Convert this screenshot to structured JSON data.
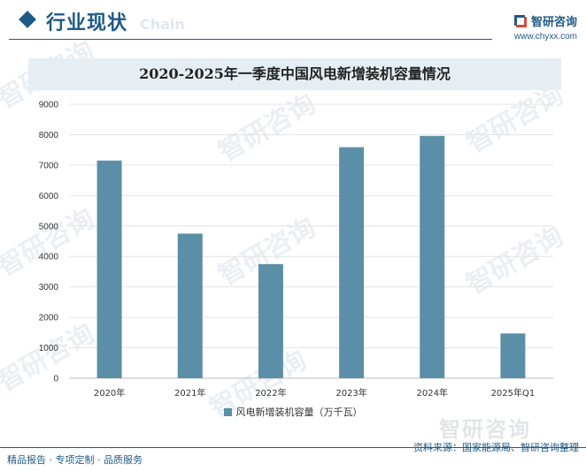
{
  "header": {
    "title": "行业现状",
    "ghost_text": "Chain",
    "brand_name": "智研咨询",
    "brand_url": "www.chyxx.com"
  },
  "watermark_text": "智研咨询",
  "footer": {
    "left": "精品报告 · 专项定制 · 品质服务",
    "right": "资料来源：国家能源局、智研咨询整理"
  },
  "colors": {
    "bar": "#5b8fa8",
    "accent": "#1f5a86"
  },
  "chart_data": {
    "type": "bar",
    "title": "2020-2025年一季度中国风电新增装机容量情况",
    "categories": [
      "2020年",
      "2021年",
      "2022年",
      "2023年",
      "2024年",
      "2025年Q1"
    ],
    "series": [
      {
        "name": "风电新增装机容量（万千瓦）",
        "values": [
          7150,
          4750,
          3750,
          7590,
          7960,
          1470
        ]
      }
    ],
    "ylim": [
      0,
      9000
    ],
    "yticks": [
      0,
      1000,
      2000,
      3000,
      4000,
      5000,
      6000,
      7000,
      8000,
      9000
    ],
    "grid": true,
    "legend_position": "bottom"
  }
}
